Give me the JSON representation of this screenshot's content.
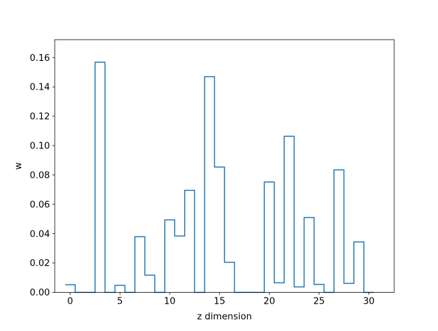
{
  "chart_data": {
    "type": "line",
    "style": "step-histogram",
    "title": "",
    "xlabel": "z dimension",
    "ylabel": "w",
    "xlim": [
      -1.55,
      32.55
    ],
    "ylim": [
      0.0,
      0.1722
    ],
    "xticks": [
      0,
      5,
      10,
      15,
      20,
      25,
      30
    ],
    "yticks": [
      0.0,
      0.02,
      0.04,
      0.06,
      0.08,
      0.1,
      0.12,
      0.14,
      0.16
    ],
    "ytick_labels": [
      "0.00",
      "0.02",
      "0.04",
      "0.06",
      "0.08",
      "0.10",
      "0.12",
      "0.14",
      "0.16"
    ],
    "grid": false,
    "legend": false,
    "series": [
      {
        "color": "#1f77b4",
        "x": [
          0,
          1,
          2,
          3,
          4,
          5,
          6,
          7,
          8,
          9,
          10,
          11,
          12,
          13,
          14,
          15,
          16,
          17,
          18,
          19,
          20,
          21,
          22,
          23,
          24,
          25,
          26,
          27,
          28,
          29,
          30
        ],
        "values": [
          0.0052,
          0.0,
          0.0,
          0.1568,
          0.0,
          0.0048,
          0.0,
          0.0379,
          0.0117,
          0.0,
          0.0494,
          0.0384,
          0.0695,
          0.0,
          0.147,
          0.0854,
          0.0205,
          0.0,
          0.0,
          0.0,
          0.0752,
          0.0065,
          0.1064,
          0.0037,
          0.051,
          0.0054,
          0.0,
          0.0835,
          0.0061,
          0.0344,
          0.0
        ]
      }
    ]
  }
}
